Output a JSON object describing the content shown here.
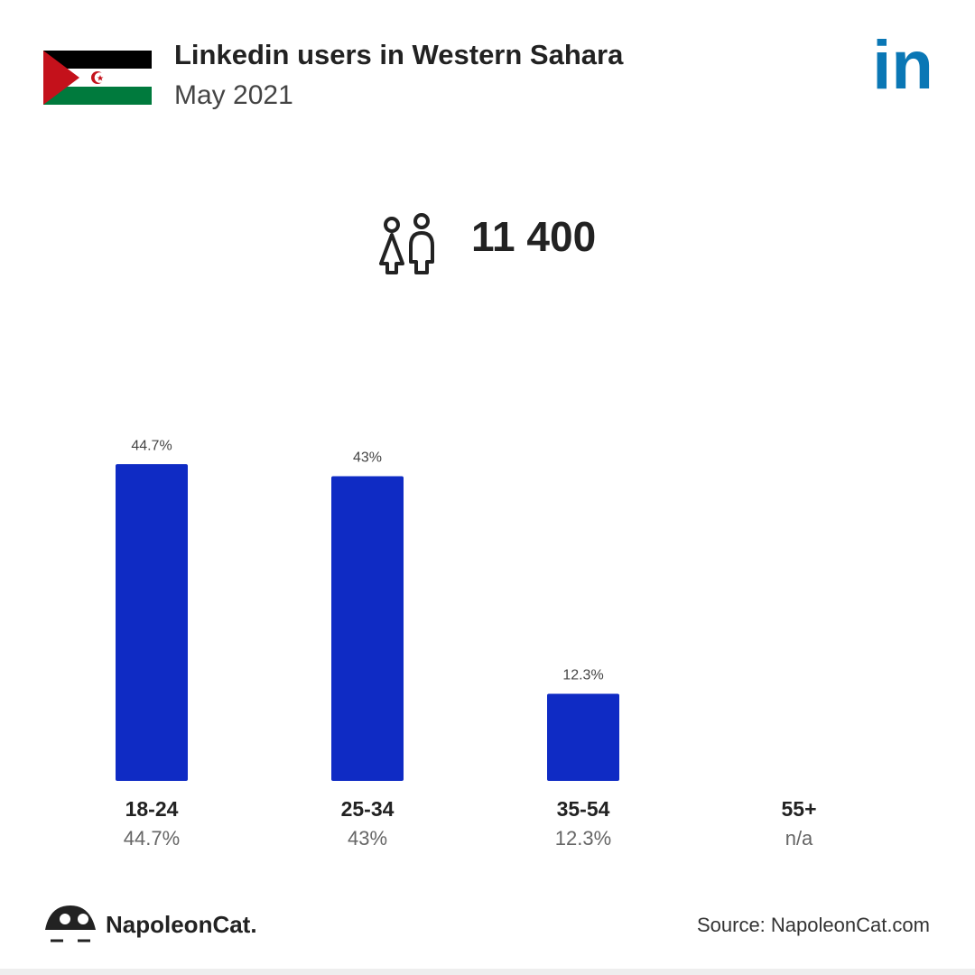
{
  "chart_data": {
    "type": "bar",
    "title": "Linkedin users in Western Sahara",
    "subtitle": "May 2021",
    "logo": "in",
    "total": {
      "value": 11400,
      "label": "11 400"
    },
    "categories": [
      "18-24",
      "25-34",
      "35-54",
      "55+"
    ],
    "values": [
      44.7,
      43,
      12.3,
      null
    ],
    "value_labels": [
      "44.7%",
      "43%",
      "12.3%",
      "n/a"
    ],
    "color": "#0f2bc4",
    "brand": "NapoleonCat.",
    "source": "Source: NapoleonCat.com"
  }
}
